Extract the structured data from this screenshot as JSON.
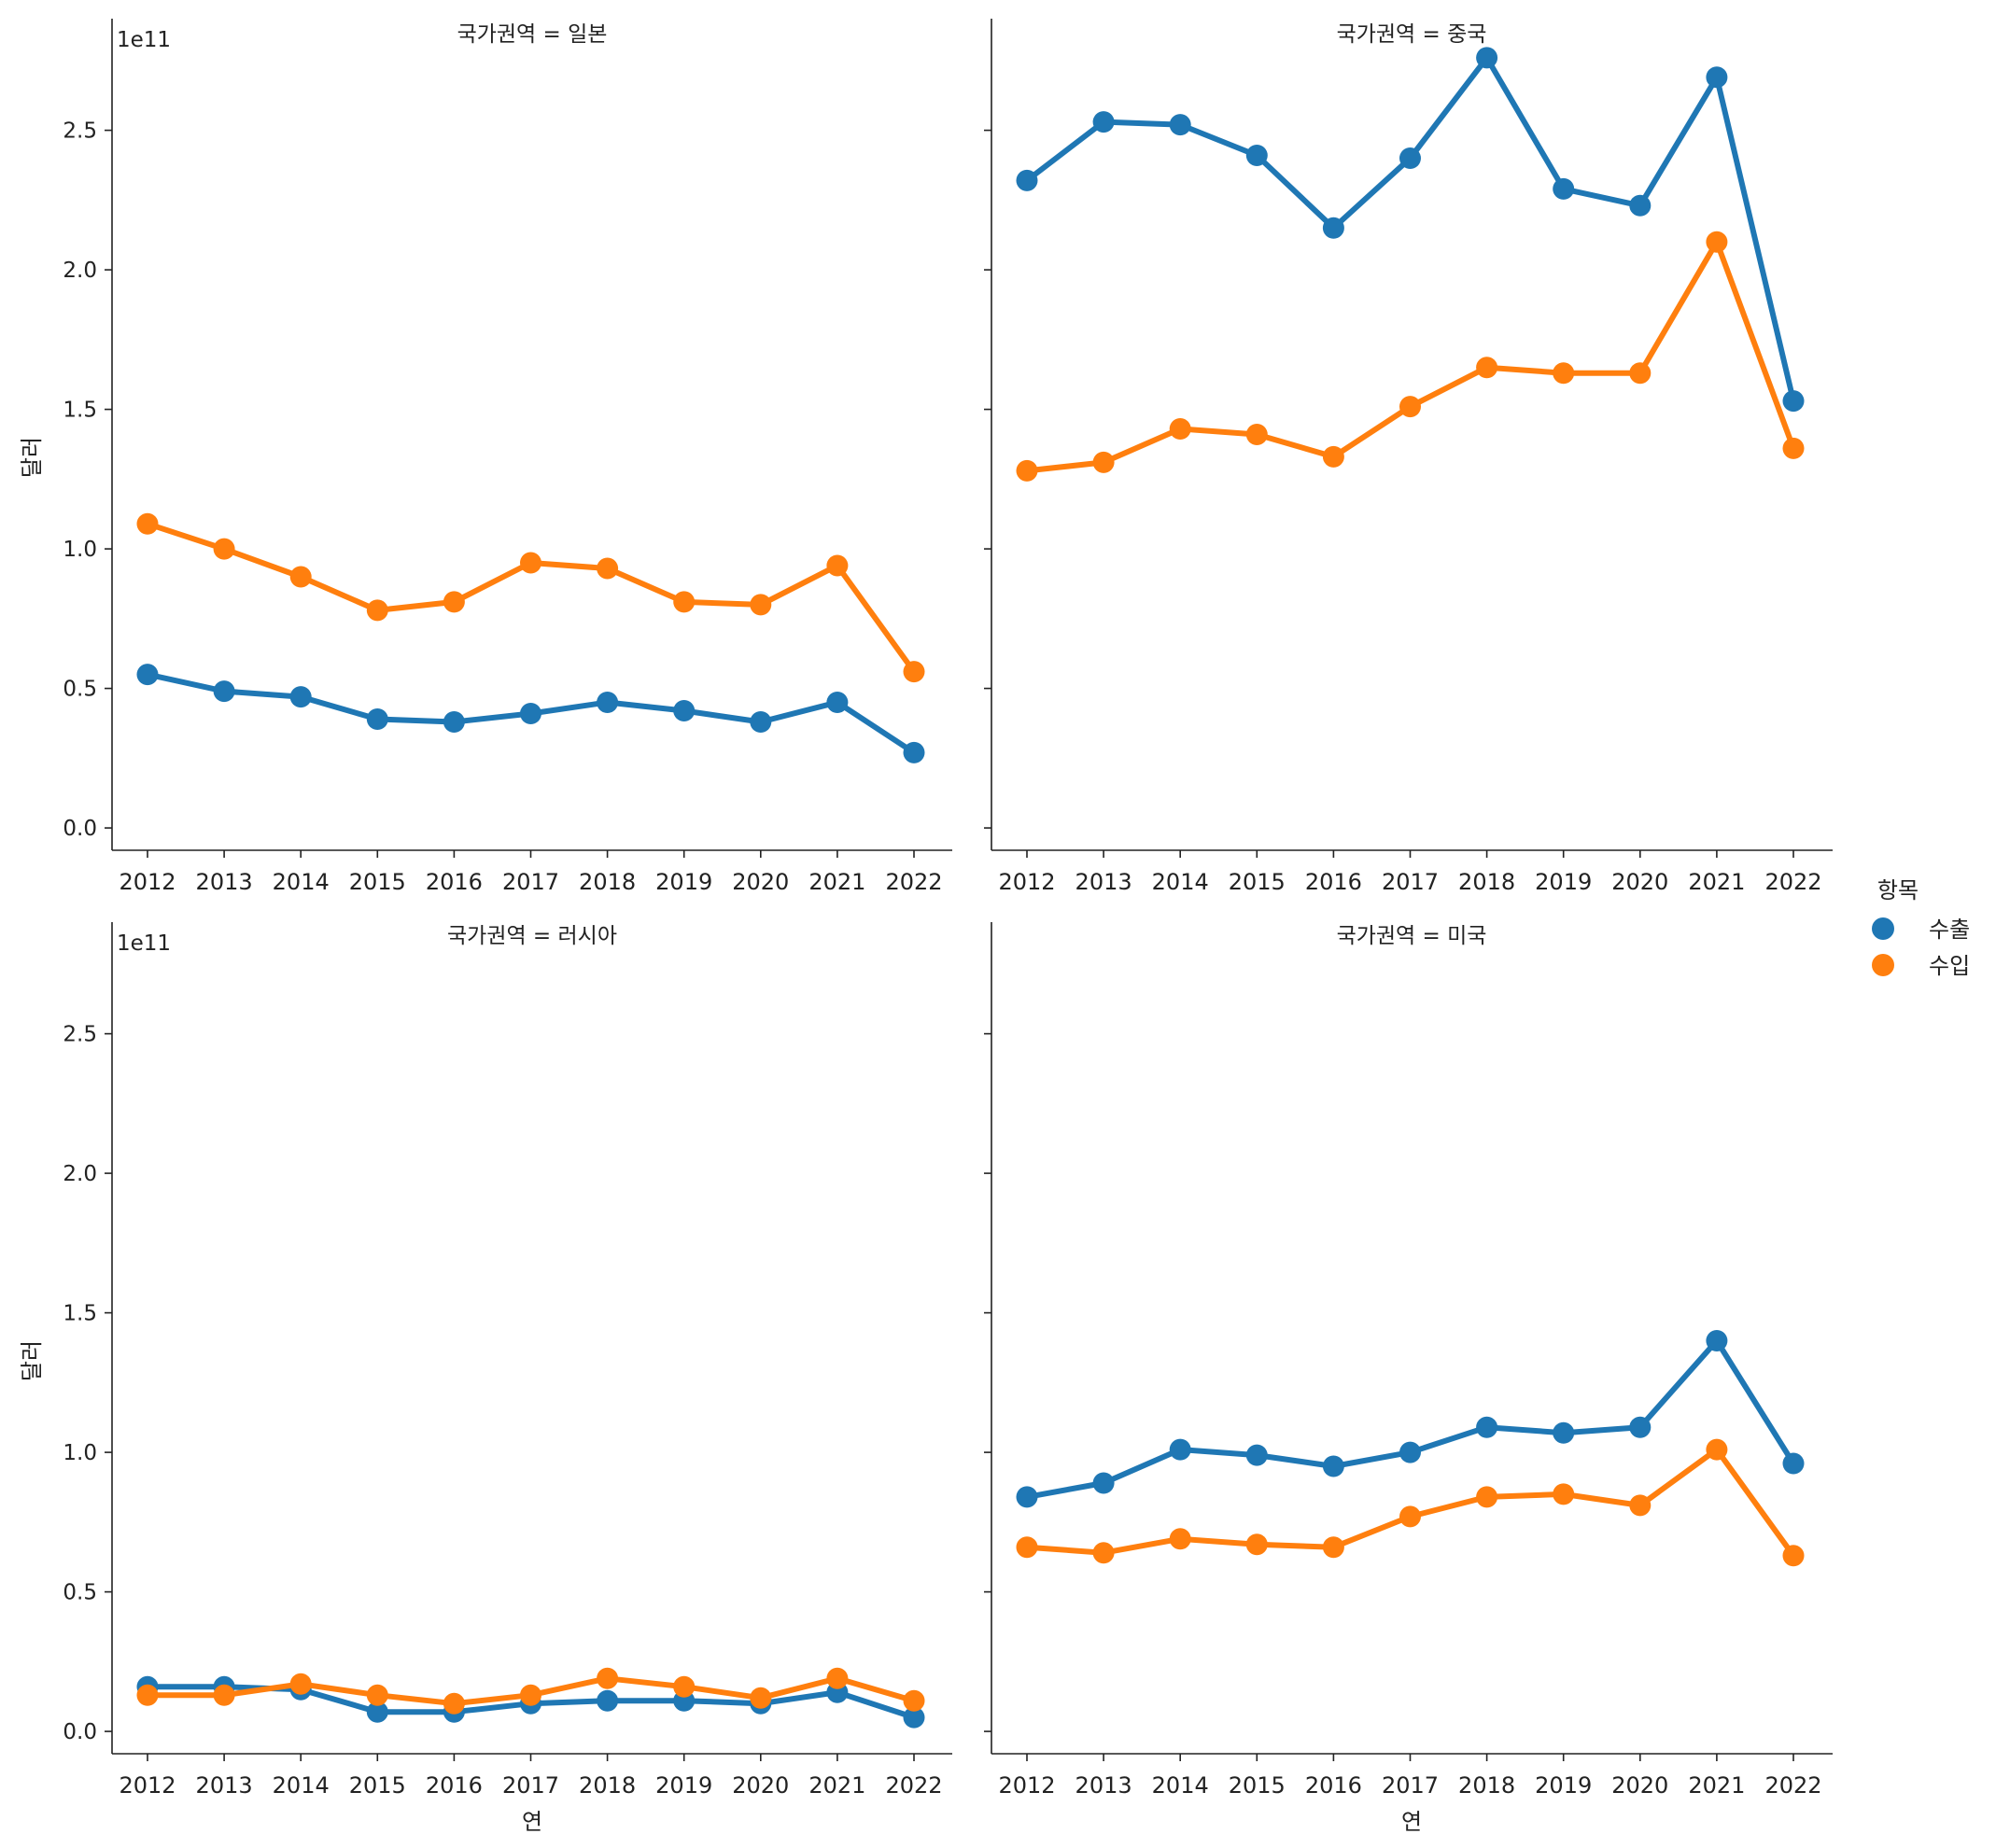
{
  "chart_data": {
    "type": "line",
    "facet_variable": "국가권역",
    "scale_label": "1e11",
    "xlabel": "연",
    "ylabel": "달러",
    "ylim": [
      -0.08,
      2.9
    ],
    "yticks": [
      0.0,
      0.5,
      1.0,
      1.5,
      2.0,
      2.5
    ],
    "ytick_labels": [
      "0.0",
      "0.5",
      "1.0",
      "1.5",
      "2.0",
      "2.5"
    ],
    "categories": [
      "2012",
      "2013",
      "2014",
      "2015",
      "2016",
      "2017",
      "2018",
      "2019",
      "2020",
      "2021",
      "2022"
    ],
    "legend": {
      "title": "항목",
      "position": "right",
      "entries": [
        {
          "name": "수출",
          "color": "#1f77b4"
        },
        {
          "name": "수입",
          "color": "#ff7f0e"
        }
      ]
    },
    "panels": [
      {
        "title": "국가권역 = 일본",
        "series": [
          {
            "name": "수출",
            "color": "#1f77b4",
            "values": [
              0.55,
              0.49,
              0.47,
              0.39,
              0.38,
              0.41,
              0.45,
              0.42,
              0.38,
              0.45,
              0.27
            ]
          },
          {
            "name": "수입",
            "color": "#ff7f0e",
            "values": [
              1.09,
              1.0,
              0.9,
              0.78,
              0.81,
              0.95,
              0.93,
              0.81,
              0.8,
              0.94,
              0.56
            ]
          }
        ]
      },
      {
        "title": "국가권역 = 중국",
        "series": [
          {
            "name": "수출",
            "color": "#1f77b4",
            "values": [
              2.32,
              2.53,
              2.52,
              2.41,
              2.15,
              2.4,
              2.76,
              2.29,
              2.23,
              2.69,
              1.53
            ]
          },
          {
            "name": "수입",
            "color": "#ff7f0e",
            "values": [
              1.28,
              1.31,
              1.43,
              1.41,
              1.33,
              1.51,
              1.65,
              1.63,
              1.63,
              2.1,
              1.36
            ]
          }
        ]
      },
      {
        "title": "국가권역 = 러시아",
        "series": [
          {
            "name": "수출",
            "color": "#1f77b4",
            "values": [
              0.16,
              0.16,
              0.15,
              0.07,
              0.07,
              0.1,
              0.11,
              0.11,
              0.1,
              0.14,
              0.05
            ]
          },
          {
            "name": "수입",
            "color": "#ff7f0e",
            "values": [
              0.13,
              0.13,
              0.17,
              0.13,
              0.1,
              0.13,
              0.19,
              0.16,
              0.12,
              0.19,
              0.11
            ]
          }
        ]
      },
      {
        "title": "국가권역 = 미국",
        "series": [
          {
            "name": "수출",
            "color": "#1f77b4",
            "values": [
              0.84,
              0.89,
              1.01,
              0.99,
              0.95,
              1.0,
              1.09,
              1.07,
              1.09,
              1.4,
              0.96
            ]
          },
          {
            "name": "수입",
            "color": "#ff7f0e",
            "values": [
              0.66,
              0.64,
              0.69,
              0.67,
              0.66,
              0.77,
              0.84,
              0.85,
              0.81,
              1.01,
              0.63
            ]
          }
        ]
      }
    ]
  }
}
